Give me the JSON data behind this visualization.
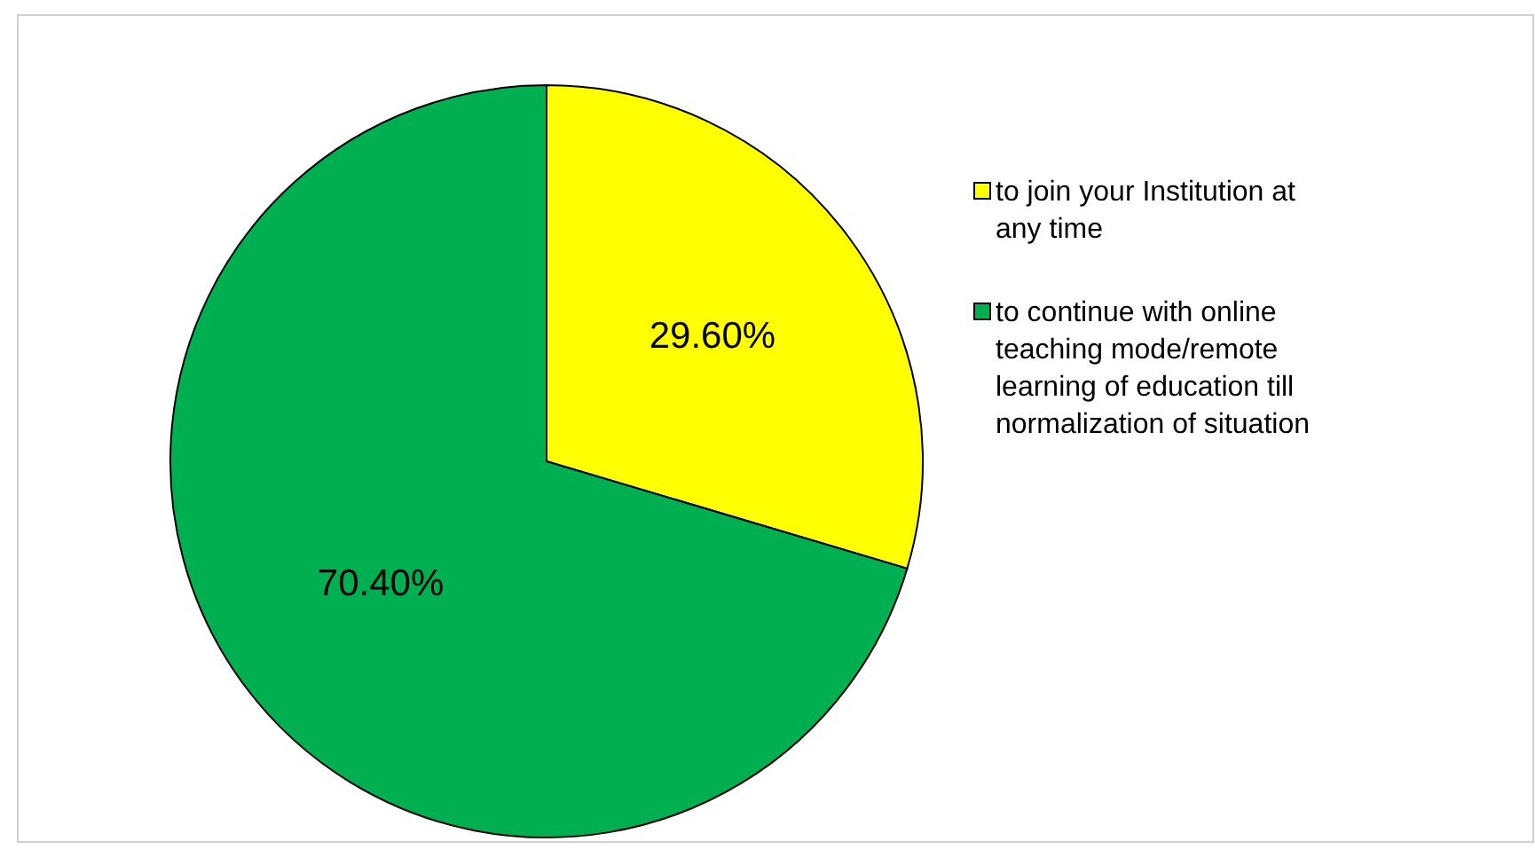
{
  "chart_data": {
    "type": "pie",
    "categories": [
      "to join your Institution at any time",
      "to continue with online teaching mode/remote learning of education till normalization of situation"
    ],
    "values": [
      29.6,
      70.4
    ],
    "colors": [
      "#ffff00",
      "#00b050"
    ],
    "value_labels": [
      "29.60%",
      "70.40%"
    ],
    "legend": "right"
  }
}
